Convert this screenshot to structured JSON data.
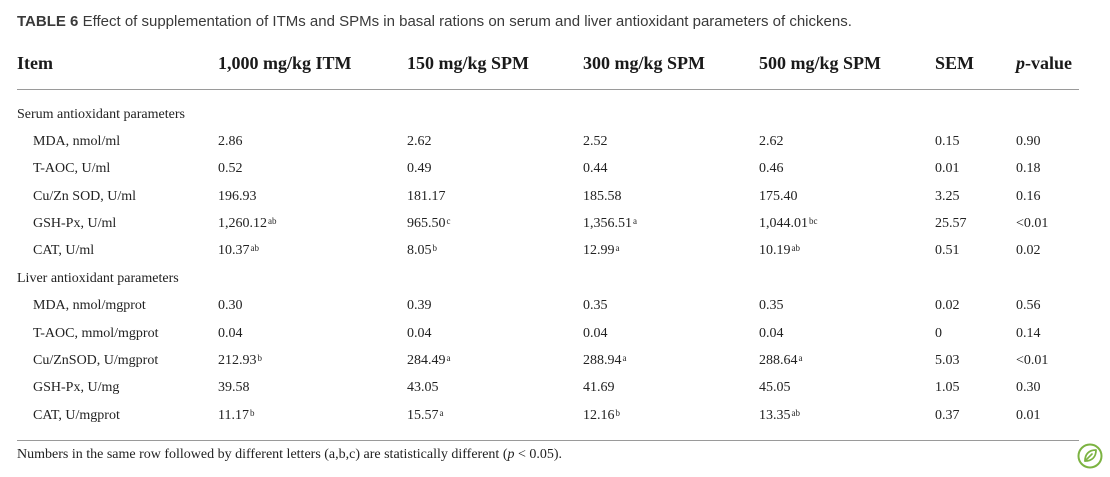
{
  "caption": {
    "label": "TABLE 6",
    "text": "Effect of supplementation of ITMs and SPMs in basal rations on serum and liver antioxidant parameters of chickens."
  },
  "header": {
    "item": "Item",
    "itm": "1,000 mg/kg ITM",
    "spm150": "150 mg/kg SPM",
    "spm300": "300 mg/kg SPM",
    "spm500": "500 mg/kg SPM",
    "sem": "SEM",
    "p_italic": "p",
    "p_rest": "-value"
  },
  "sections": [
    {
      "title": "Serum antioxidant parameters",
      "rows": [
        {
          "item": "MDA, nmol/ml",
          "itm": "2.86",
          "itm_sup": "",
          "spm150": "2.62",
          "spm150_sup": "",
          "spm300": "2.52",
          "spm300_sup": "",
          "spm500": "2.62",
          "spm500_sup": "",
          "sem": "0.15",
          "p": "0.90"
        },
        {
          "item": "T-AOC, U/ml",
          "itm": "0.52",
          "itm_sup": "",
          "spm150": "0.49",
          "spm150_sup": "",
          "spm300": "0.44",
          "spm300_sup": "",
          "spm500": "0.46",
          "spm500_sup": "",
          "sem": "0.01",
          "p": "0.18"
        },
        {
          "item": "Cu/Zn SOD, U/ml",
          "itm": "196.93",
          "itm_sup": "",
          "spm150": "181.17",
          "spm150_sup": "",
          "spm300": "185.58",
          "spm300_sup": "",
          "spm500": "175.40",
          "spm500_sup": "",
          "sem": "3.25",
          "p": "0.16"
        },
        {
          "item": "GSH-Px, U/ml",
          "itm": "1,260.12",
          "itm_sup": "ab",
          "spm150": "965.50",
          "spm150_sup": "c",
          "spm300": "1,356.51",
          "spm300_sup": "a",
          "spm500": "1,044.01",
          "spm500_sup": "bc",
          "sem": "25.57",
          "p": "<0.01"
        },
        {
          "item": "CAT, U/ml",
          "itm": "10.37",
          "itm_sup": "ab",
          "spm150": "8.05",
          "spm150_sup": "b",
          "spm300": "12.99",
          "spm300_sup": "a",
          "spm500": "10.19",
          "spm500_sup": "ab",
          "sem": "0.51",
          "p": "0.02"
        }
      ]
    },
    {
      "title": "Liver antioxidant parameters",
      "rows": [
        {
          "item": "MDA, nmol/mgprot",
          "itm": "0.30",
          "itm_sup": "",
          "spm150": "0.39",
          "spm150_sup": "",
          "spm300": "0.35",
          "spm300_sup": "",
          "spm500": "0.35",
          "spm500_sup": "",
          "sem": "0.02",
          "p": "0.56"
        },
        {
          "item": "T-AOC, mmol/mgprot",
          "itm": "0.04",
          "itm_sup": "",
          "spm150": "0.04",
          "spm150_sup": "",
          "spm300": "0.04",
          "spm300_sup": "",
          "spm500": "0.04",
          "spm500_sup": "",
          "sem": "0",
          "p": "0.14"
        },
        {
          "item": "Cu/ZnSOD, U/mgprot",
          "itm": "212.93",
          "itm_sup": "b",
          "spm150": "284.49",
          "spm150_sup": "a",
          "spm300": "288.94",
          "spm300_sup": "a",
          "spm500": "288.64",
          "spm500_sup": "a",
          "sem": "5.03",
          "p": "<0.01"
        },
        {
          "item": "GSH-Px, U/mg",
          "itm": "39.58",
          "itm_sup": "",
          "spm150": "43.05",
          "spm150_sup": "",
          "spm300": "41.69",
          "spm300_sup": "",
          "spm500": "45.05",
          "spm500_sup": "",
          "sem": "1.05",
          "p": "0.30"
        },
        {
          "item": "CAT, U/mgprot",
          "itm": "11.17",
          "itm_sup": "b",
          "spm150": "15.57",
          "spm150_sup": "a",
          "spm300": "12.16",
          "spm300_sup": "b",
          "spm500": "13.35",
          "spm500_sup": "ab",
          "sem": "0.37",
          "p": "0.01"
        }
      ]
    }
  ],
  "footnote": {
    "before": "Numbers in the same row followed by different letters (a,b,c) are statistically different (",
    "p_italic": "p",
    "after": " < 0.05)."
  },
  "logo": {
    "icon": "open-access-leaf-icon",
    "color": "#7cb342"
  }
}
